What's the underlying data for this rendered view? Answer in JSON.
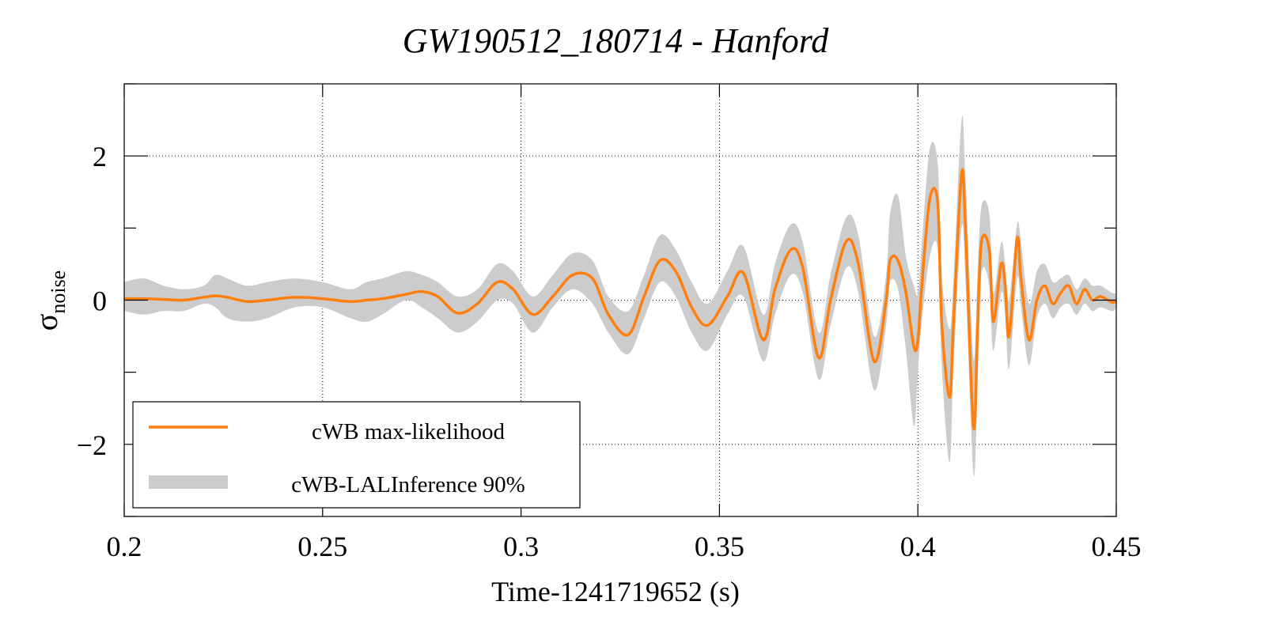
{
  "chart_data": {
    "type": "line",
    "title": "GW190512_180714 - Hanford",
    "xlabel": "Time-1241719652 (s)",
    "ylabel": "σ",
    "ylabel_subscript": "noise",
    "xlim": [
      0.2,
      0.45
    ],
    "ylim": [
      -3,
      3
    ],
    "x_ticks": [
      "0.2",
      "0.25",
      "0.3",
      "0.35",
      "0.4",
      "0.45"
    ],
    "x_tick_values": [
      0.2,
      0.25,
      0.3,
      0.35,
      0.4,
      0.45
    ],
    "y_ticks": [
      "2",
      "0",
      "−2"
    ],
    "y_tick_values": [
      2,
      0,
      -2
    ],
    "grid": true,
    "legend_position": "bottom-left",
    "colors": {
      "max_likelihood": "#ff7f0e",
      "band": "#cccccc"
    },
    "series": [
      {
        "name": "cWB max-likelihood",
        "style": "line",
        "x": [
          0.2,
          0.205,
          0.21,
          0.215,
          0.22,
          0.223,
          0.226,
          0.231,
          0.236,
          0.243,
          0.25,
          0.257,
          0.261,
          0.265,
          0.271,
          0.275,
          0.279,
          0.284,
          0.289,
          0.294,
          0.298,
          0.303,
          0.308,
          0.313,
          0.318,
          0.322,
          0.327,
          0.331,
          0.335,
          0.339,
          0.343,
          0.347,
          0.352,
          0.356,
          0.361,
          0.364,
          0.368,
          0.371,
          0.375,
          0.378,
          0.382,
          0.385,
          0.389,
          0.392,
          0.393,
          0.395,
          0.397,
          0.399,
          0.4,
          0.401,
          0.403,
          0.405,
          0.406,
          0.408,
          0.409,
          0.411,
          0.412,
          0.414,
          0.415,
          0.416,
          0.418,
          0.419,
          0.421,
          0.422,
          0.423,
          0.425,
          0.426,
          0.428,
          0.43,
          0.432,
          0.434,
          0.436,
          0.438,
          0.44,
          0.442,
          0.444,
          0.446,
          0.449,
          0.45
        ],
        "y": [
          0.02,
          0.02,
          0.01,
          0.0,
          0.04,
          0.06,
          0.04,
          -0.02,
          0.0,
          0.04,
          0.02,
          -0.02,
          0.0,
          0.02,
          0.08,
          0.12,
          0.05,
          -0.18,
          -0.05,
          0.25,
          0.15,
          -0.2,
          0.05,
          0.35,
          0.3,
          -0.2,
          -0.48,
          0.05,
          0.55,
          0.4,
          -0.1,
          -0.35,
          0.05,
          0.38,
          -0.55,
          0.15,
          0.7,
          0.45,
          -0.8,
          0.0,
          0.82,
          0.5,
          -0.85,
          0.0,
          0.55,
          0.55,
          0.1,
          -0.65,
          -0.55,
          0.2,
          1.4,
          1.35,
          -0.3,
          -1.35,
          -0.3,
          1.75,
          1.0,
          -1.75,
          -0.5,
          0.8,
          0.7,
          -0.3,
          0.5,
          0.2,
          -0.5,
          0.85,
          0.3,
          -0.55,
          0.0,
          0.2,
          -0.05,
          0.1,
          0.2,
          -0.05,
          0.15,
          0.0,
          0.05,
          -0.03,
          0.0
        ]
      },
      {
        "name": "cWB-LALInference 90%",
        "style": "band",
        "x": [
          0.2,
          0.205,
          0.21,
          0.215,
          0.22,
          0.223,
          0.226,
          0.231,
          0.236,
          0.243,
          0.25,
          0.257,
          0.261,
          0.265,
          0.271,
          0.275,
          0.279,
          0.284,
          0.289,
          0.294,
          0.298,
          0.303,
          0.308,
          0.313,
          0.318,
          0.322,
          0.327,
          0.331,
          0.335,
          0.339,
          0.343,
          0.347,
          0.352,
          0.356,
          0.361,
          0.364,
          0.368,
          0.371,
          0.375,
          0.378,
          0.382,
          0.385,
          0.389,
          0.392,
          0.393,
          0.395,
          0.397,
          0.399,
          0.4,
          0.401,
          0.403,
          0.405,
          0.406,
          0.408,
          0.409,
          0.411,
          0.412,
          0.414,
          0.415,
          0.416,
          0.418,
          0.419,
          0.421,
          0.422,
          0.423,
          0.425,
          0.426,
          0.428,
          0.43,
          0.432,
          0.434,
          0.436,
          0.438,
          0.44,
          0.442,
          0.444,
          0.446,
          0.449,
          0.45
        ],
        "lower": [
          -0.15,
          -0.2,
          -0.15,
          -0.15,
          -0.05,
          -0.1,
          -0.25,
          -0.3,
          -0.25,
          -0.1,
          -0.1,
          -0.25,
          -0.3,
          -0.2,
          0.0,
          -0.1,
          -0.25,
          -0.45,
          -0.3,
          0.0,
          -0.05,
          -0.45,
          -0.1,
          0.15,
          -0.05,
          -0.45,
          -0.75,
          -0.25,
          0.25,
          0.05,
          -0.45,
          -0.7,
          -0.2,
          0.05,
          -0.85,
          -0.2,
          0.35,
          0.1,
          -1.1,
          -0.35,
          0.45,
          0.1,
          -1.25,
          -0.35,
          0.25,
          0.15,
          -0.7,
          -1.75,
          -1.0,
          -0.3,
          0.6,
          0.7,
          -0.9,
          -2.25,
          -0.9,
          1.0,
          0.3,
          -2.4,
          -1.3,
          0.35,
          0.2,
          -0.7,
          0.1,
          -0.2,
          -0.95,
          0.3,
          -0.1,
          -0.9,
          -0.25,
          -0.05,
          -0.25,
          -0.1,
          -0.05,
          -0.2,
          -0.05,
          -0.15,
          -0.1,
          -0.15,
          -0.1
        ],
        "upper": [
          0.25,
          0.3,
          0.2,
          0.15,
          0.2,
          0.35,
          0.3,
          0.2,
          0.25,
          0.3,
          0.25,
          0.15,
          0.25,
          0.3,
          0.4,
          0.35,
          0.25,
          0.05,
          0.15,
          0.5,
          0.4,
          0.05,
          0.35,
          0.65,
          0.55,
          0.05,
          -0.15,
          0.35,
          0.9,
          0.7,
          0.25,
          -0.05,
          0.4,
          0.75,
          -0.2,
          0.5,
          1.05,
          0.8,
          -0.45,
          0.35,
          1.15,
          0.9,
          -0.5,
          0.35,
          1.2,
          1.45,
          0.6,
          0.2,
          0.1,
          0.8,
          2.1,
          1.9,
          0.35,
          -0.4,
          0.3,
          2.5,
          1.7,
          -0.8,
          0.3,
          1.3,
          1.2,
          0.1,
          0.8,
          0.5,
          0.0,
          1.05,
          0.8,
          -0.05,
          0.4,
          0.5,
          0.25,
          0.3,
          0.35,
          0.15,
          0.3,
          0.2,
          0.2,
          0.1,
          0.1
        ]
      }
    ]
  }
}
